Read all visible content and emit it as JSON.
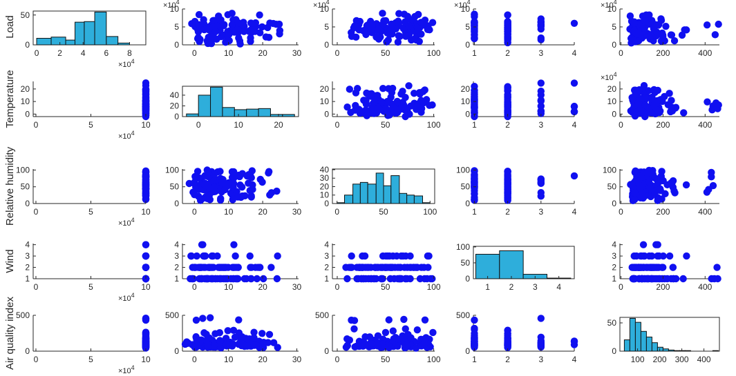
{
  "colors": {
    "point": "#1010f0",
    "bar_fill": "#2eaedb",
    "bar_stroke": "#111111",
    "axis": "#262626"
  },
  "variables": [
    "Load",
    "Temperature",
    "Relative humidity",
    "Wind",
    "Air quality index"
  ],
  "exponent_label": {
    "base": "×10",
    "power": "4"
  },
  "chart_data": {
    "type": "scatter-matrix",
    "title": "",
    "variables": [
      "Load",
      "Temperature",
      "Relative humidity",
      "Wind",
      "Air quality index"
    ],
    "axes": {
      "Load": {
        "range": [
          0,
          100000
        ],
        "ticks": [
          0,
          2,
          4,
          6,
          8,
          10
        ],
        "tick_labels": [
          "0",
          "2",
          "4",
          "6",
          "8",
          "10"
        ],
        "multiplier": "×10^4"
      },
      "Temperature": {
        "range": [
          -4,
          26
        ],
        "ticks": [
          0,
          10,
          20
        ],
        "tick_labels": [
          "0",
          "10",
          "20"
        ]
      },
      "Relative humidity": {
        "range": [
          0,
          100
        ],
        "ticks": [
          0,
          50,
          100
        ],
        "tick_labels": [
          "0",
          "50",
          "100"
        ]
      },
      "Wind": {
        "range": [
          1,
          4
        ],
        "ticks": [
          1,
          2,
          3,
          4
        ],
        "tick_labels": [
          "1",
          "2",
          "3",
          "4"
        ]
      },
      "Air quality index": {
        "range": [
          0,
          470
        ],
        "ticks": [
          0,
          100,
          200,
          300,
          400
        ],
        "tick_labels": [
          "0",
          "100",
          "200",
          "300",
          "400"
        ]
      }
    },
    "histograms": {
      "Load": {
        "bin_edges_x1e4": [
          0,
          1.25,
          2.5,
          3.3,
          4.1,
          5,
          6,
          7,
          8
        ],
        "counts": [
          11,
          13,
          8,
          38,
          39,
          55,
          14,
          3
        ],
        "x_ticks": [
          0,
          2,
          4,
          6,
          8
        ],
        "y_ticks": [
          0,
          50
        ],
        "xlim": [
          -0.3,
          9.4
        ]
      },
      "Temperature": {
        "bin_edges": [
          -3,
          0,
          3,
          6,
          9,
          12,
          15,
          18,
          21,
          24
        ],
        "counts": [
          5,
          40,
          55,
          17,
          13,
          14,
          15,
          4,
          4
        ],
        "x_ticks": [
          0,
          10,
          20
        ],
        "y_ticks": [
          0,
          20,
          40
        ],
        "xlim": [
          -4,
          25
        ]
      },
      "Relative humidity": {
        "bin_edges": [
          0,
          8,
          17,
          25,
          33,
          42,
          50,
          58,
          67,
          75,
          83,
          92,
          100
        ],
        "counts": [
          1,
          10,
          23,
          25,
          23,
          36,
          21,
          33,
          12,
          10,
          9,
          1
        ],
        "x_ticks": [
          0,
          50,
          100
        ],
        "y_ticks": [
          0,
          10,
          20,
          30,
          40
        ],
        "xlim": [
          -5,
          105
        ]
      },
      "Wind": {
        "categories": [
          1,
          2,
          3,
          4
        ],
        "counts": [
          77,
          88,
          14,
          2
        ],
        "x_ticks": [
          1,
          2,
          3,
          4
        ],
        "y_ticks": [
          0,
          50,
          100
        ],
        "xlim": [
          0.4,
          4.65
        ]
      },
      "Air quality index": {
        "bin_edges": [
          40,
          65,
          90,
          115,
          140,
          165,
          190,
          215,
          240,
          265,
          290,
          315,
          340,
          365,
          390,
          415,
          440,
          465
        ],
        "counts": [
          20,
          58,
          51,
          35,
          25,
          15,
          7,
          4,
          2,
          1,
          1,
          1,
          0,
          0,
          0,
          0,
          1
        ],
        "x_ticks": [
          100,
          200,
          300,
          400
        ],
        "y_ticks": [
          0,
          50
        ],
        "xlim": [
          20,
          470
        ]
      }
    },
    "samples": {
      "Load_x1e4": [
        5.3,
        3.6,
        4.2,
        2.6,
        4.8,
        5.7,
        1.1,
        3.1,
        6.2,
        4.1,
        5.1,
        4.5,
        2.1,
        3.8,
        5.9,
        0.8,
        6.6,
        4.9,
        3.5,
        5.5,
        1.6,
        4.3,
        2.9,
        6.9,
        5.0,
        3.3,
        0.5,
        4.7,
        5.8,
        8.1,
        2.4,
        3.9,
        5.2,
        6.4,
        4.4,
        1.9,
        5.6,
        8.4,
        3.1,
        4.0,
        6.0,
        5.4
      ],
      "Temperature": [
        8,
        5,
        2,
        12,
        3,
        0,
        15,
        22,
        1,
        6,
        10,
        4,
        18,
        7,
        11,
        -2,
        20,
        9,
        13,
        6,
        3,
        2,
        16,
        1,
        24,
        5,
        8,
        14,
        3,
        7,
        10,
        0,
        12,
        6,
        19,
        2,
        9,
        4,
        1,
        17,
        5,
        11
      ],
      "Relative humidity": [
        72,
        35,
        55,
        90,
        40,
        62,
        95,
        50,
        30,
        81,
        45,
        15,
        60,
        88,
        20,
        70,
        38,
        58,
        93,
        25,
        66,
        48,
        75,
        33,
        52,
        85,
        12,
        64,
        42,
        28,
        78,
        56,
        96,
        36,
        68,
        22,
        46,
        61,
        83,
        30,
        53,
        74
      ],
      "Wind": [
        1,
        2,
        2,
        1,
        3,
        2,
        1,
        2,
        1,
        2,
        3,
        1,
        2,
        1,
        2,
        1,
        4,
        2,
        1,
        2,
        3,
        1,
        2,
        1,
        2,
        2,
        1,
        3,
        2,
        1,
        2,
        1,
        2,
        2,
        1,
        3,
        2,
        1,
        2,
        1,
        2,
        2
      ],
      "Air quality index": [
        90,
        150,
        60,
        210,
        110,
        75,
        130,
        420,
        85,
        180,
        55,
        240,
        100,
        120,
        70,
        160,
        95,
        200,
        65,
        140,
        115,
        80,
        170,
        105,
        60,
        250,
        125,
        90,
        145,
        450,
        75,
        110,
        185,
        95,
        135,
        70,
        160,
        100,
        300,
        85,
        120,
        65
      ]
    }
  }
}
